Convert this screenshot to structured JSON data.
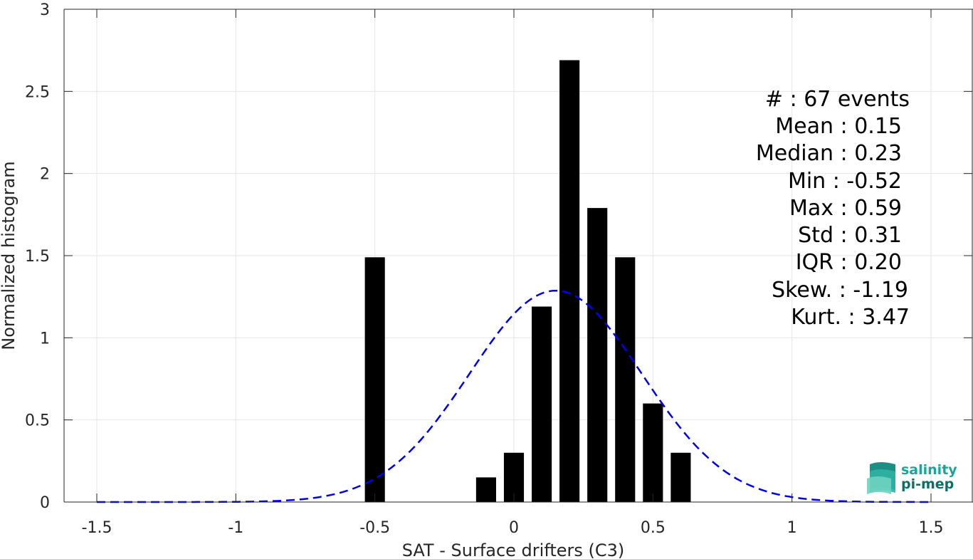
{
  "chart_data": {
    "type": "bar",
    "xlabel": "SAT - Surface drifters (C3)",
    "ylabel": "Normalized histogram",
    "xlim": [
      -1.5,
      1.5
    ],
    "ylim": [
      0,
      3
    ],
    "grid": true,
    "bar_color": "#000000",
    "fit_color": "#0000ee",
    "x_ticks": [
      "-1.5",
      "-1",
      "-0.5",
      "0",
      "0.5",
      "1",
      "1.5"
    ],
    "x_tick_values": [
      -1.5,
      -1,
      -0.5,
      0,
      0.5,
      1,
      1.5
    ],
    "y_ticks": [
      "0",
      "0.5",
      "1",
      "1.5",
      "2",
      "2.5",
      "3"
    ],
    "y_tick_values": [
      0,
      0.5,
      1,
      1.5,
      2,
      2.5,
      3
    ],
    "bin_width": 0.1,
    "bins": [
      {
        "x": -0.5,
        "value": 1.49
      },
      {
        "x": -0.1,
        "value": 0.15
      },
      {
        "x": 0.0,
        "value": 0.3
      },
      {
        "x": 0.1,
        "value": 1.19
      },
      {
        "x": 0.2,
        "value": 2.69
      },
      {
        "x": 0.3,
        "value": 1.79
      },
      {
        "x": 0.4,
        "value": 1.49
      },
      {
        "x": 0.5,
        "value": 0.6
      },
      {
        "x": 0.6,
        "value": 0.3
      }
    ],
    "fit": {
      "type": "gaussian",
      "mean": 0.15,
      "std": 0.31,
      "style": "dashed"
    }
  },
  "stats": {
    "count": "#  : 67 events",
    "mean": "Mean : 0.15",
    "median": "Median : 0.23",
    "min": "Min : -0.52",
    "max": "Max : 0.59",
    "std": "Std : 0.31",
    "iqr": "IQR : 0.20",
    "skew": "Skew. : -1.19",
    "kurt": "Kurt. : 3.47"
  },
  "logo": {
    "line1": "salinity",
    "line2": "pi-mep",
    "color1": "#1aa59a",
    "color2": "#0f6e66"
  }
}
